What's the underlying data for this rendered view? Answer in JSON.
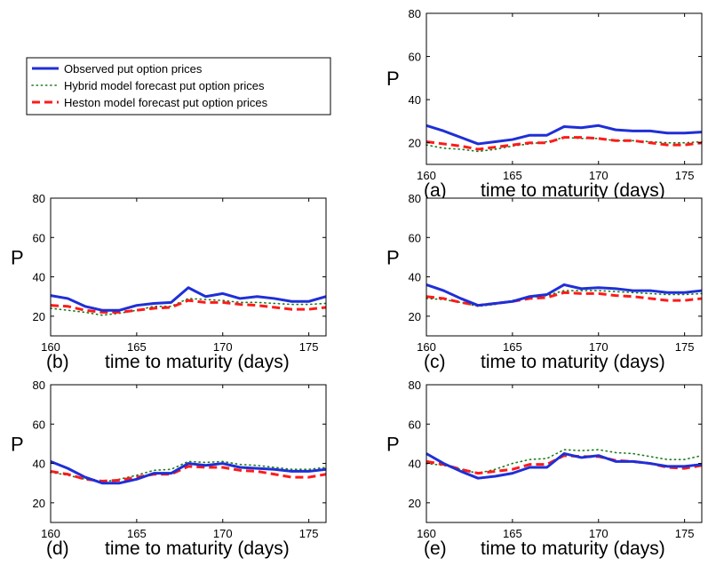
{
  "legend": {
    "entries": [
      {
        "label": "Observed put option prices",
        "color": "#1f2fd6",
        "style": "solid"
      },
      {
        "label": "Hybrid model forecast put option prices",
        "color": "#1a7a1a",
        "style": "dotted"
      },
      {
        "label": "Heston model forecast put option prices",
        "color": "#ff1a1a",
        "style": "dashed"
      }
    ]
  },
  "chart_data": [
    {
      "type": "line",
      "panel_label": "(a)",
      "xlabel": "time to maturity (days)",
      "ylabel": "P",
      "xlim": [
        160,
        176
      ],
      "ylim": [
        10,
        80
      ],
      "xticks": [
        160,
        165,
        170,
        175
      ],
      "yticks": [
        20,
        40,
        60,
        80
      ],
      "x": [
        160,
        161,
        162,
        163,
        164,
        165,
        166,
        167,
        168,
        169,
        170,
        171,
        172,
        173,
        174,
        175,
        176
      ],
      "series": [
        {
          "name": "Observed put option prices",
          "values": [
            28,
            25.5,
            22.5,
            19.5,
            20.5,
            21.5,
            23.5,
            23.5,
            27.5,
            27,
            28,
            26,
            25.5,
            25.5,
            24.5,
            24.5,
            25
          ]
        },
        {
          "name": "Hybrid model forecast put option prices",
          "values": [
            19,
            17.5,
            17,
            16,
            17,
            18.5,
            19.5,
            20.5,
            22.5,
            22,
            22,
            21,
            21,
            20.5,
            20,
            20,
            20.5
          ]
        },
        {
          "name": "Heston model forecast put option prices",
          "values": [
            20.5,
            19.5,
            18.5,
            17,
            18,
            19,
            20,
            20,
            22.5,
            22.5,
            22,
            21,
            21,
            20,
            19,
            19,
            20
          ]
        }
      ]
    },
    {
      "type": "line",
      "panel_label": "(b)",
      "xlabel": "time to maturity (days)",
      "ylabel": "P",
      "xlim": [
        160,
        176
      ],
      "ylim": [
        10,
        80
      ],
      "xticks": [
        160,
        165,
        170,
        175
      ],
      "yticks": [
        20,
        40,
        60,
        80
      ],
      "x": [
        160,
        161,
        162,
        163,
        164,
        165,
        166,
        167,
        168,
        169,
        170,
        171,
        172,
        173,
        174,
        175,
        176
      ],
      "series": [
        {
          "name": "Observed put option prices",
          "values": [
            30.5,
            29,
            25,
            23,
            23,
            25.5,
            26.5,
            27,
            34.5,
            30,
            31.5,
            29,
            30,
            29,
            27.5,
            27.5,
            30
          ]
        },
        {
          "name": "Hybrid model forecast put option prices",
          "values": [
            24,
            23,
            22,
            20.5,
            21.5,
            23,
            25,
            25,
            29,
            28.5,
            28,
            27,
            27,
            26.5,
            26,
            26,
            26.5
          ]
        },
        {
          "name": "Heston model forecast put option prices",
          "values": [
            25.5,
            25,
            23,
            22,
            22,
            23,
            24,
            24.5,
            28,
            27,
            27,
            26,
            25.5,
            24.5,
            23.5,
            23.5,
            24.5
          ]
        }
      ]
    },
    {
      "type": "line",
      "panel_label": "(c)",
      "xlabel": "time to maturity (days)",
      "ylabel": "P",
      "xlim": [
        160,
        176
      ],
      "ylim": [
        10,
        80
      ],
      "xticks": [
        160,
        165,
        170,
        175
      ],
      "yticks": [
        20,
        40,
        60,
        80
      ],
      "x": [
        160,
        161,
        162,
        163,
        164,
        165,
        166,
        167,
        168,
        169,
        170,
        171,
        172,
        173,
        174,
        175,
        176
      ],
      "series": [
        {
          "name": "Observed put option prices",
          "values": [
            36,
            33,
            29,
            25.5,
            26.5,
            27.5,
            30,
            31,
            36,
            34,
            34.5,
            34,
            33,
            33,
            32,
            32,
            33
          ]
        },
        {
          "name": "Hybrid model forecast put option prices",
          "values": [
            29,
            28.5,
            27,
            25,
            26,
            28,
            29.5,
            30.5,
            33,
            33,
            33,
            32.5,
            32,
            31.5,
            31,
            31,
            31.5
          ]
        },
        {
          "name": "Heston model forecast put option prices",
          "values": [
            30,
            29,
            27,
            25.5,
            26.5,
            27.5,
            29,
            29.5,
            32,
            31.5,
            31.5,
            30.5,
            30,
            29,
            28,
            28,
            29
          ]
        }
      ]
    },
    {
      "type": "line",
      "panel_label": "(d)",
      "xlabel": "time to maturity (days)",
      "ylabel": "P",
      "xlim": [
        160,
        176
      ],
      "ylim": [
        10,
        80
      ],
      "xticks": [
        160,
        165,
        170,
        175
      ],
      "yticks": [
        20,
        40,
        60,
        80
      ],
      "x": [
        160,
        161,
        162,
        163,
        164,
        165,
        166,
        167,
        168,
        169,
        170,
        171,
        172,
        173,
        174,
        175,
        176
      ],
      "series": [
        {
          "name": "Observed put option prices",
          "values": [
            41,
            37.5,
            33,
            30,
            30,
            32,
            35,
            35,
            40,
            39,
            40,
            38,
            37.5,
            37,
            36,
            36,
            37
          ]
        },
        {
          "name": "Hybrid model forecast put option prices",
          "values": [
            35.5,
            34,
            32,
            30.5,
            32,
            34,
            36.5,
            37,
            41,
            40.5,
            41,
            39.5,
            39,
            38,
            37,
            37,
            38
          ]
        },
        {
          "name": "Heston model forecast put option prices",
          "values": [
            36,
            34.5,
            32,
            31,
            31.5,
            33,
            34.5,
            34.5,
            38.5,
            38,
            38,
            36.5,
            36,
            34.5,
            33,
            33,
            34.5
          ]
        }
      ]
    },
    {
      "type": "line",
      "panel_label": "(e)",
      "xlabel": "time to maturity (days)",
      "ylabel": "P",
      "xlim": [
        160,
        176
      ],
      "ylim": [
        10,
        80
      ],
      "xticks": [
        160,
        165,
        170,
        175
      ],
      "yticks": [
        20,
        40,
        60,
        80
      ],
      "x": [
        160,
        161,
        162,
        163,
        164,
        165,
        166,
        167,
        168,
        169,
        170,
        171,
        172,
        173,
        174,
        175,
        176
      ],
      "series": [
        {
          "name": "Observed put option prices",
          "values": [
            45,
            40,
            36,
            32.5,
            33.5,
            35,
            38,
            38,
            45,
            43,
            44,
            41,
            41,
            40,
            38.5,
            38.5,
            39.5
          ]
        },
        {
          "name": "Hybrid model forecast put option prices",
          "values": [
            40,
            39,
            37,
            35,
            37,
            40,
            42,
            42.5,
            47,
            46.5,
            47,
            45.5,
            45,
            43.5,
            42,
            42,
            44
          ]
        },
        {
          "name": "Heston model forecast put option prices",
          "values": [
            41,
            39.5,
            37,
            35,
            36,
            37,
            39.5,
            39.5,
            44,
            43.5,
            43.5,
            41.5,
            41,
            40,
            38,
            37.5,
            39
          ]
        }
      ]
    }
  ]
}
